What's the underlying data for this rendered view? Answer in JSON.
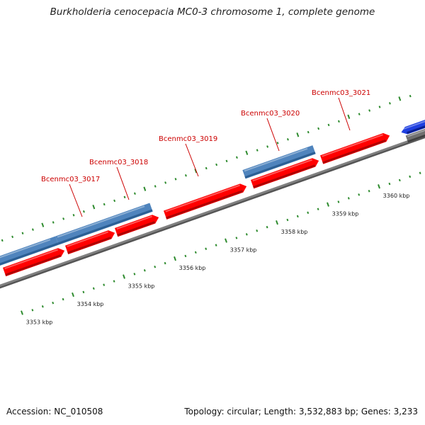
{
  "title": "Burkholderia cenocepacia MC0-3 chromosome 1, complete genome",
  "footer": {
    "accession": "Accession: NC_010508",
    "summary": "Topology: circular; Length: 3,532,883 bp; Genes: 3,233"
  },
  "colors": {
    "forward_gene": "#ff0000",
    "reverse_gene": "#4f84bd",
    "reverse_gene_dark": "#1f49a0",
    "backbone": "#808080",
    "tick": "#2e8b2e",
    "gene_label": "#cc0000"
  },
  "ticks": {
    "labels": [
      "3353 kbp",
      "3354 kbp",
      "3355 kbp",
      "3356 kbp",
      "3357 kbp",
      "3358 kbp",
      "3359 kbp",
      "3360 kbp"
    ]
  },
  "genes": [
    {
      "label": "Bcenmc03_3017"
    },
    {
      "label": "Bcenmc03_3018"
    },
    {
      "label": "Bcenmc03_3019"
    },
    {
      "label": "Bcenmc03_3020"
    },
    {
      "label": "Bcenmc03_3021"
    }
  ]
}
